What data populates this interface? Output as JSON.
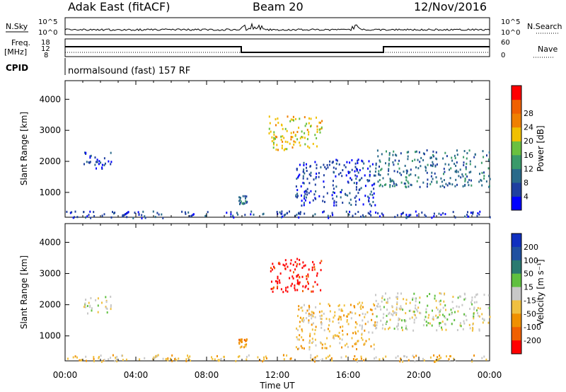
{
  "header": {
    "station": "Adak East (fitACF)",
    "beam": "Beam 20",
    "date": "12/Nov/2016"
  },
  "summary_panels": {
    "nsky": {
      "label": "N.Sky",
      "ticks": [
        "10^5",
        "10^0"
      ]
    },
    "nsearch": {
      "label": "N.Search",
      "ticks": [
        "10^5",
        "10^0"
      ]
    },
    "freq": {
      "label": "Freq.",
      "unit": "[MHz]",
      "ticks": [
        "18",
        "12",
        "8"
      ]
    },
    "nave": {
      "label": "Nave",
      "ticks": [
        "60",
        "0"
      ]
    },
    "cpid": {
      "label": "CPID",
      "text": "normalsound (fast) 157 RF"
    }
  },
  "chart_data": [
    {
      "type": "heatmap",
      "name": "power",
      "ylabel": "Slant Range [km]",
      "xlabel": "",
      "xlim": [
        0,
        24
      ],
      "ylim": [
        200,
        4600
      ],
      "yticks": [
        "1000",
        "2000",
        "3000",
        "4000"
      ],
      "colorbar": {
        "label": "Power [dB]",
        "ticks": [
          "4",
          "8",
          "12",
          "16",
          "20",
          "24",
          "28"
        ],
        "colors": [
          "#0000ff",
          "#1f3fa0",
          "#2a6a8a",
          "#3a9a6a",
          "#6ac040",
          "#f0c000",
          "#f08000",
          "#f06000",
          "#ff0000"
        ]
      },
      "regions": [
        {
          "t": [
            1.0,
            2.6
          ],
          "r": [
            1750,
            2350
          ],
          "level": 1
        },
        {
          "t": [
            9.8,
            10.3
          ],
          "r": [
            650,
            950
          ],
          "level": 2
        },
        {
          "t": [
            11.5,
            14.5
          ],
          "r": [
            2400,
            3500
          ],
          "level": 5
        },
        {
          "t": [
            13.0,
            17.5
          ],
          "r": [
            600,
            2100
          ],
          "level": 1
        },
        {
          "t": [
            17.5,
            24.0
          ],
          "r": [
            1200,
            2400
          ],
          "level": 2
        },
        {
          "t": [
            0.0,
            24.0
          ],
          "r": [
            200,
            420
          ],
          "level": 1
        }
      ]
    },
    {
      "type": "heatmap",
      "name": "velocity",
      "ylabel": "Slant Range [km]",
      "xlabel": "Time UT",
      "xlim": [
        0,
        24
      ],
      "ylim": [
        200,
        4600
      ],
      "xticks": [
        "00:00",
        "04:00",
        "08:00",
        "12:00",
        "16:00",
        "20:00",
        "00:00"
      ],
      "yticks": [
        "1000",
        "2000",
        "3000",
        "4000"
      ],
      "colorbar": {
        "label": "Velocity [m s⁻¹]",
        "ticks": [
          "200",
          "100",
          "50",
          "15",
          "-15",
          "-50",
          "-100",
          "-200"
        ],
        "colors": [
          "#1030c0",
          "#2050a0",
          "#2a7a70",
          "#60c040",
          "#c8c8c8",
          "#f0c040",
          "#f09000",
          "#f06000",
          "#ff0000"
        ]
      },
      "regions": [
        {
          "t": [
            1.0,
            2.6
          ],
          "r": [
            1750,
            2350
          ],
          "level": 4
        },
        {
          "t": [
            9.8,
            10.3
          ],
          "r": [
            650,
            950
          ],
          "level": 6
        },
        {
          "t": [
            11.5,
            14.5
          ],
          "r": [
            2400,
            3500
          ],
          "level": 8
        },
        {
          "t": [
            13.0,
            17.5
          ],
          "r": [
            600,
            2100
          ],
          "level": 5
        },
        {
          "t": [
            17.5,
            24.0
          ],
          "r": [
            1200,
            2400
          ],
          "level": 4
        },
        {
          "t": [
            0.0,
            24.0
          ],
          "r": [
            200,
            420
          ],
          "level": 5
        }
      ]
    }
  ]
}
